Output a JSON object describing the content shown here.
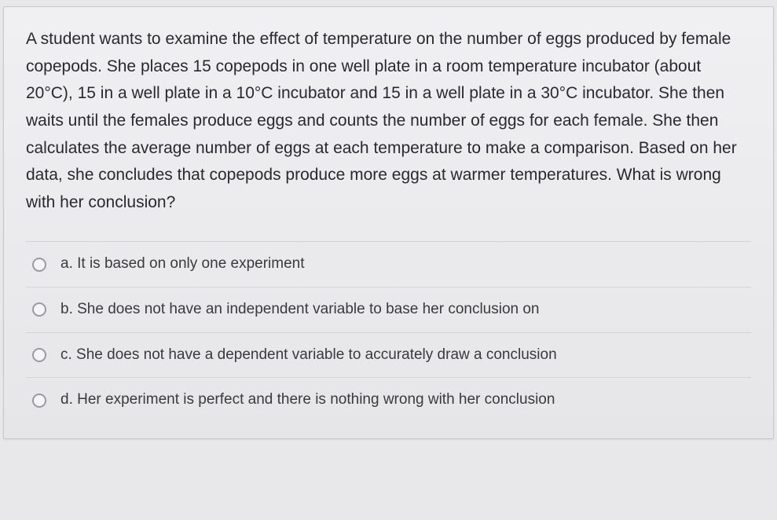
{
  "question": {
    "prompt": "A student wants to examine the effect of temperature on the number of eggs produced by female copepods. She places 15 copepods in one well plate in a room temperature incubator (about 20°C), 15 in a well plate in a 10°C incubator and 15 in a well plate in a 30°C incubator. She then waits until the females produce eggs and counts the number of eggs for each female. She then calculates the average number of eggs at each temperature to make a comparison. Based on her data, she concludes that copepods produce more eggs at warmer temperatures. What is wrong with her conclusion?",
    "options": [
      {
        "label": "a. It is based on only one experiment"
      },
      {
        "label": "b. She does not have an independent variable to base her conclusion on"
      },
      {
        "label": "c. She does not have a dependent variable to accurately draw a conclusion"
      },
      {
        "label": "d. Her experiment is perfect and there is nothing wrong with her conclusion"
      }
    ]
  },
  "styling": {
    "card_background": "#eeeef0",
    "card_border": "#c8c8cc",
    "body_background": "#e8e8ea",
    "text_color": "#2a2a2e",
    "option_text_color": "#3a3a3e",
    "divider_color": "#d4d4d8",
    "radio_border": "#9a9aa0",
    "question_fontsize": 21,
    "option_fontsize": 19,
    "line_height": 1.65
  }
}
